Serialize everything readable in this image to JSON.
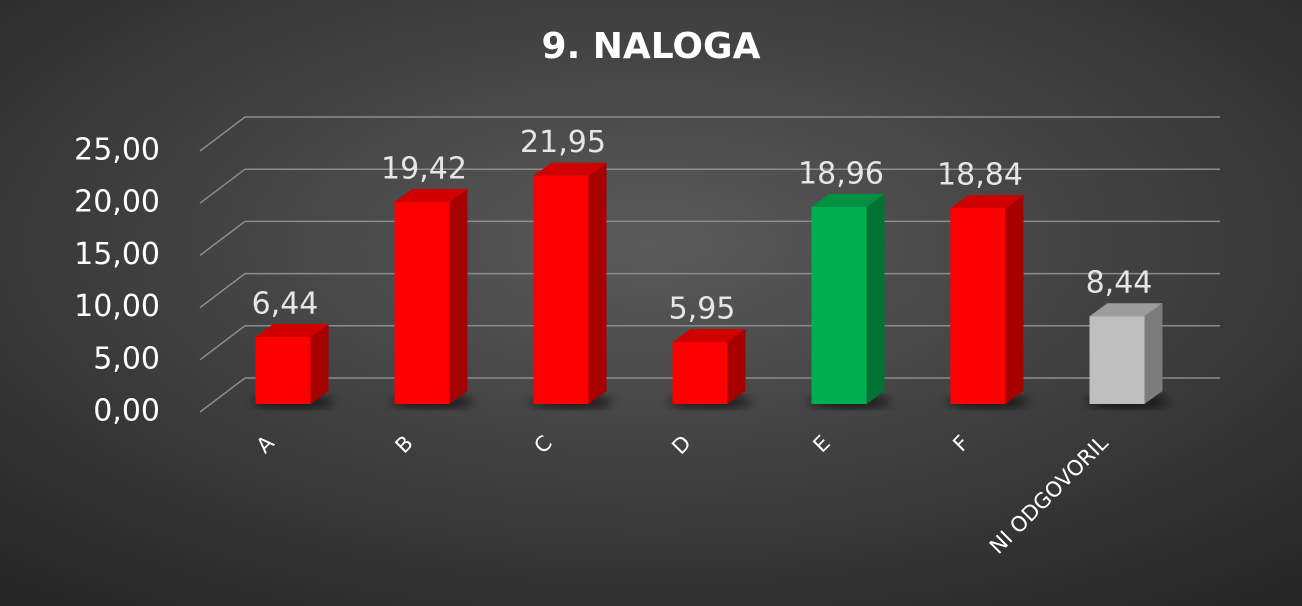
{
  "chart_data": {
    "type": "bar3d",
    "title": "9. NALOGA",
    "categories": [
      "A",
      "B",
      "C",
      "D",
      "E",
      "F",
      "NI ODGOVORIL"
    ],
    "values": [
      6.44,
      19.42,
      21.95,
      5.95,
      18.96,
      18.84,
      8.44
    ],
    "value_labels": [
      "6,44",
      "19,42",
      "21,95",
      "5,95",
      "18,96",
      "18,84",
      "8,44"
    ],
    "colors": [
      "#ff0000",
      "#ff0000",
      "#ff0000",
      "#ff0000",
      "#00b050",
      "#ff0000",
      "#bfbfbf"
    ],
    "ylim": [
      0,
      25
    ],
    "yticks": [
      {
        "value": 0,
        "label": "0,00"
      },
      {
        "value": 5,
        "label": "5,00"
      },
      {
        "value": 10,
        "label": "10,00"
      },
      {
        "value": 15,
        "label": "15,00"
      },
      {
        "value": 20,
        "label": "20,00"
      },
      {
        "value": 25,
        "label": "25,00"
      }
    ],
    "grid": true
  }
}
